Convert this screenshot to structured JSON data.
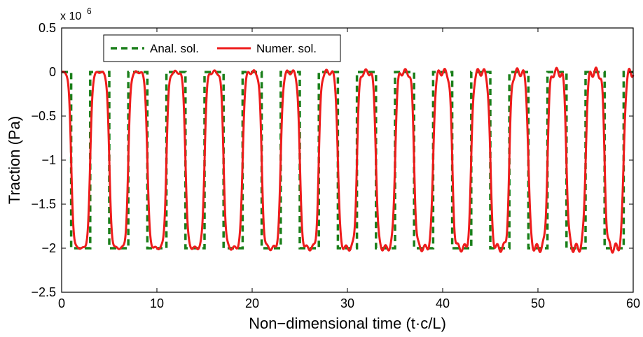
{
  "chart_data": {
    "type": "line",
    "xlabel": "Non−dimensional time (t·c/L)",
    "ylabel": "Traction (Pa)",
    "y_multiplier_base": "x 10",
    "y_multiplier_exp": "6",
    "xlim": [
      0,
      60
    ],
    "ylim": [
      -2.5,
      0.5
    ],
    "x_ticks": [
      0,
      10,
      20,
      30,
      40,
      50,
      60
    ],
    "x_tick_labels": [
      "0",
      "10",
      "20",
      "30",
      "40",
      "50",
      "60"
    ],
    "y_ticks": [
      0.5,
      0,
      -0.5,
      -1,
      -1.5,
      -2,
      -2.5
    ],
    "y_tick_labels": [
      "0.5",
      "0",
      "−0.5",
      "−1",
      "−1.5",
      "−2",
      "−2.5"
    ],
    "grid": false,
    "legend_position": "top-left",
    "period": 4,
    "low_intervals": [
      [
        1,
        3
      ],
      [
        5,
        7
      ],
      [
        9,
        11
      ],
      [
        13,
        15
      ],
      [
        17,
        19
      ],
      [
        21,
        23
      ],
      [
        25,
        27
      ],
      [
        29,
        31
      ],
      [
        33,
        35
      ],
      [
        37,
        39
      ],
      [
        41,
        43
      ],
      [
        45,
        47
      ],
      [
        49,
        51
      ],
      [
        53,
        55
      ],
      [
        57,
        59
      ]
    ],
    "series": [
      {
        "name": "Anal. sol.",
        "color": "#1a7f1a",
        "style": "dashed",
        "high": 0,
        "low": -2
      },
      {
        "name": "Numer. sol.",
        "color": "#ee1c1c",
        "style": "solid",
        "high": 0,
        "low": -2
      }
    ]
  }
}
